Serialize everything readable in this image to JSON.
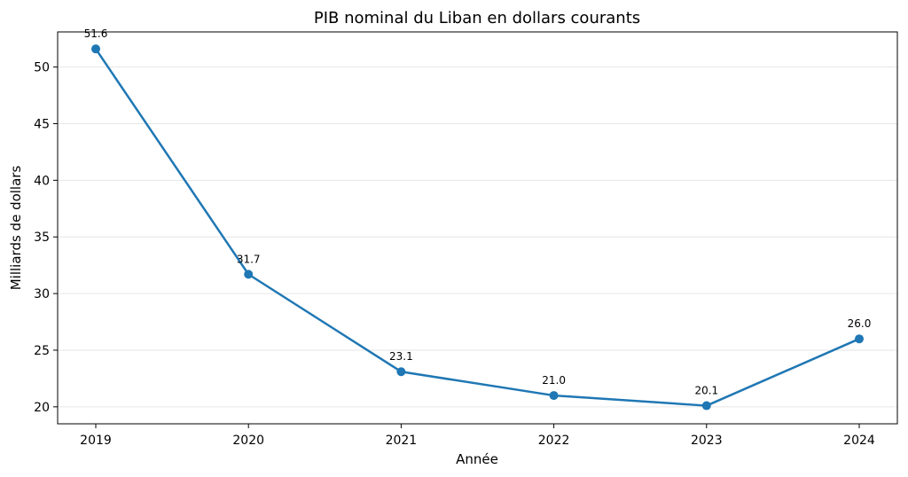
{
  "chart_data": {
    "type": "line",
    "title": "PIB nominal du Liban en dollars courants",
    "xlabel": "Année",
    "ylabel": "Milliards de dollars",
    "x": [
      "2019",
      "2020",
      "2021",
      "2022",
      "2023",
      "2024"
    ],
    "series": [
      {
        "values": [
          51.6,
          31.7,
          23.1,
          21.0,
          20.1,
          26.0
        ],
        "labels": [
          "51.6",
          "31.7",
          "23.1",
          "21.0",
          "20.1",
          "26.0"
        ],
        "color": "#1f77b4"
      }
    ],
    "ylim": [
      18.5,
      53.1
    ],
    "yticks": [
      "20",
      "25",
      "30",
      "35",
      "40",
      "45",
      "50"
    ],
    "grid": "horizontal"
  }
}
